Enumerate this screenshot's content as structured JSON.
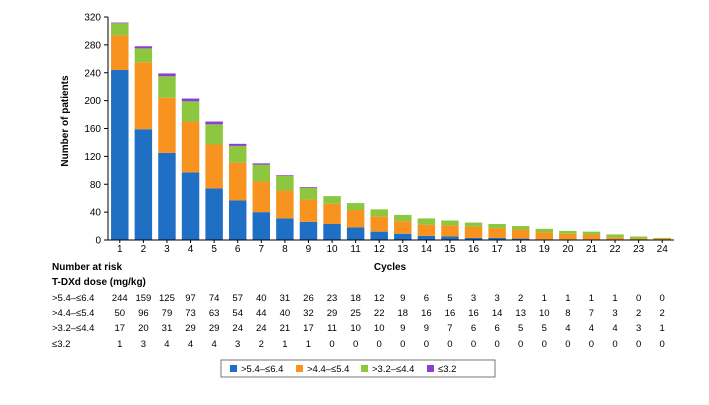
{
  "chart_data": {
    "type": "bar",
    "stacked": true,
    "title": "",
    "xlabel": "Cycles",
    "ylabel": "Number of patients",
    "ylim": [
      0,
      320
    ],
    "yticks": [
      0,
      40,
      80,
      120,
      160,
      200,
      240,
      280,
      320
    ],
    "categories": [
      "1",
      "2",
      "3",
      "4",
      "5",
      "6",
      "7",
      "8",
      "9",
      "10",
      "11",
      "12",
      "13",
      "14",
      "15",
      "16",
      "17",
      "18",
      "19",
      "20",
      "21",
      "22",
      "23",
      "24"
    ],
    "series": [
      {
        "name": ">5.4–≤6.4",
        "color": "#1f6fc5",
        "values": [
          244,
          159,
          125,
          97,
          74,
          57,
          40,
          31,
          26,
          23,
          18,
          12,
          9,
          6,
          5,
          3,
          3,
          2,
          1,
          1,
          1,
          1,
          0,
          0
        ]
      },
      {
        "name": ">4.4–≤5.4",
        "color": "#f7931e",
        "values": [
          50,
          96,
          79,
          73,
          63,
          54,
          44,
          40,
          32,
          29,
          25,
          22,
          18,
          16,
          16,
          16,
          14,
          13,
          10,
          8,
          7,
          3,
          2,
          2
        ]
      },
      {
        "name": ">3.2–≤4.4",
        "color": "#8dc63f",
        "values": [
          17,
          20,
          31,
          29,
          29,
          24,
          24,
          21,
          17,
          11,
          10,
          10,
          9,
          9,
          7,
          6,
          6,
          5,
          5,
          4,
          4,
          4,
          3,
          1
        ]
      },
      {
        "name": "≤3.2",
        "color": "#8a3fd1",
        "values": [
          1,
          3,
          4,
          4,
          4,
          3,
          2,
          1,
          1,
          0,
          0,
          0,
          0,
          0,
          0,
          0,
          0,
          0,
          0,
          0,
          0,
          0,
          0,
          0
        ]
      }
    ],
    "grid": false,
    "legend_position": "bottom"
  },
  "risk_table": {
    "title": "Number at risk",
    "subtitle": "T-DXd dose (mg/kg)",
    "rows": [
      {
        "label": ">5.4–≤6.4",
        "values": [
          244,
          159,
          125,
          97,
          74,
          57,
          40,
          31,
          26,
          23,
          18,
          12,
          9,
          6,
          5,
          3,
          3,
          2,
          1,
          1,
          1,
          1,
          0,
          0
        ]
      },
      {
        "label": ">4.4–≤5.4",
        "values": [
          50,
          96,
          79,
          73,
          63,
          54,
          44,
          40,
          32,
          29,
          25,
          22,
          18,
          16,
          16,
          16,
          14,
          13,
          10,
          8,
          7,
          3,
          2,
          2
        ]
      },
      {
        "label": ">3.2–≤4.4",
        "values": [
          17,
          20,
          31,
          29,
          29,
          24,
          24,
          21,
          17,
          11,
          10,
          10,
          9,
          9,
          7,
          6,
          6,
          5,
          5,
          4,
          4,
          4,
          3,
          1
        ]
      },
      {
        "label": "≤3.2",
        "values": [
          1,
          3,
          4,
          4,
          4,
          3,
          2,
          1,
          1,
          0,
          0,
          0,
          0,
          0,
          0,
          0,
          0,
          0,
          0,
          0,
          0,
          0,
          0,
          0
        ]
      }
    ]
  }
}
